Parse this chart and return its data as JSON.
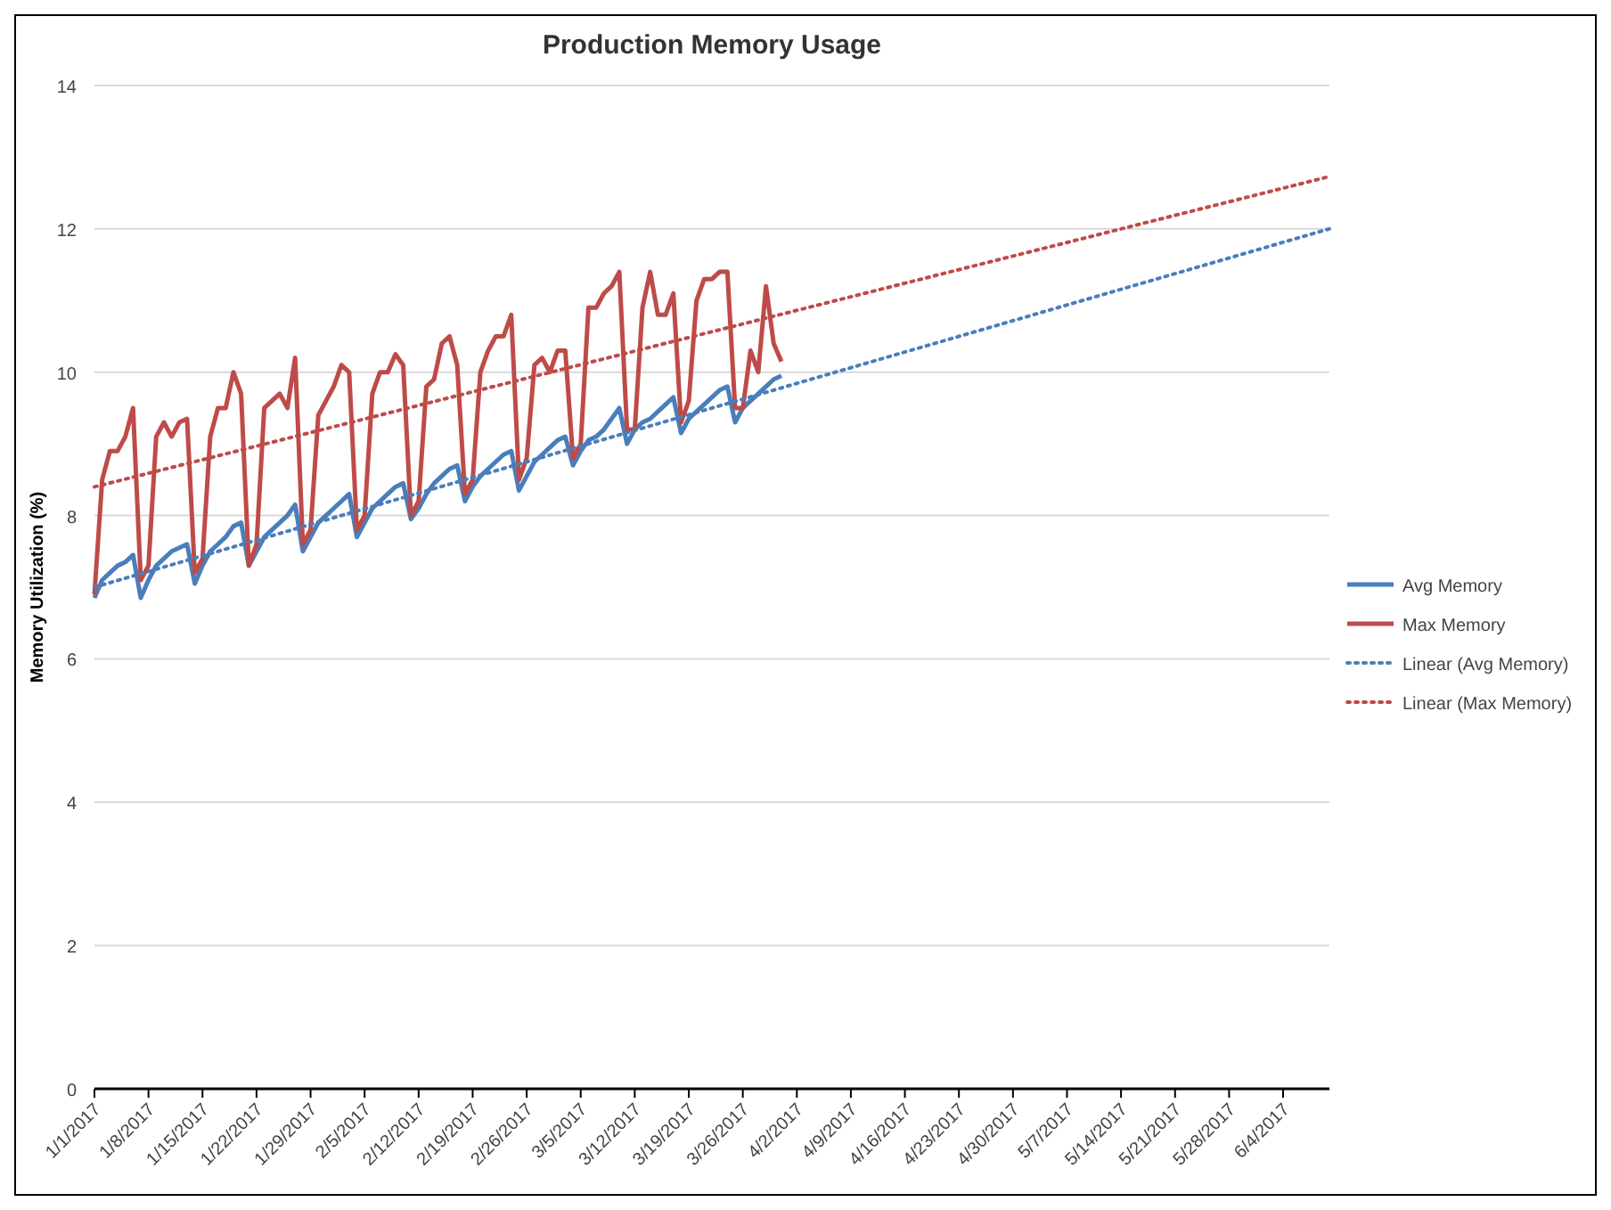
{
  "chart_data": {
    "type": "line",
    "title": "Production Memory Usage",
    "ylabel": "Memory Utilization  (%)",
    "x": [
      "2017-01-01",
      "2017-01-02",
      "2017-01-03",
      "2017-01-04",
      "2017-01-05",
      "2017-01-06",
      "2017-01-07",
      "2017-01-08",
      "2017-01-09",
      "2017-01-10",
      "2017-01-11",
      "2017-01-12",
      "2017-01-13",
      "2017-01-14",
      "2017-01-15",
      "2017-01-16",
      "2017-01-17",
      "2017-01-18",
      "2017-01-19",
      "2017-01-20",
      "2017-01-21",
      "2017-01-22",
      "2017-01-23",
      "2017-01-24",
      "2017-01-25",
      "2017-01-26",
      "2017-01-27",
      "2017-01-28",
      "2017-01-29",
      "2017-01-30",
      "2017-01-31",
      "2017-02-01",
      "2017-02-02",
      "2017-02-03",
      "2017-02-04",
      "2017-02-05",
      "2017-02-06",
      "2017-02-07",
      "2017-02-08",
      "2017-02-09",
      "2017-02-10",
      "2017-02-11",
      "2017-02-12",
      "2017-02-13",
      "2017-02-14",
      "2017-02-15",
      "2017-02-16",
      "2017-02-17",
      "2017-02-18",
      "2017-02-19",
      "2017-02-20",
      "2017-02-21",
      "2017-02-22",
      "2017-02-23",
      "2017-02-24",
      "2017-02-25",
      "2017-02-26",
      "2017-02-27",
      "2017-02-28",
      "2017-03-01",
      "2017-03-02",
      "2017-03-03",
      "2017-03-04",
      "2017-03-05",
      "2017-03-06",
      "2017-03-07",
      "2017-03-08",
      "2017-03-09",
      "2017-03-10",
      "2017-03-11",
      "2017-03-12",
      "2017-03-13",
      "2017-03-14",
      "2017-03-15",
      "2017-03-16",
      "2017-03-17",
      "2017-03-18",
      "2017-03-19",
      "2017-03-20",
      "2017-03-21",
      "2017-03-22",
      "2017-03-23",
      "2017-03-24",
      "2017-03-25",
      "2017-03-26",
      "2017-03-27",
      "2017-03-28",
      "2017-03-29",
      "2017-03-30",
      "2017-03-31"
    ],
    "series": [
      {
        "name": "Avg Memory",
        "color": "#4a7ebb",
        "values": [
          6.85,
          7.1,
          7.2,
          7.3,
          7.35,
          7.45,
          6.85,
          7.1,
          7.3,
          7.4,
          7.5,
          7.55,
          7.6,
          7.05,
          7.3,
          7.5,
          7.6,
          7.7,
          7.85,
          7.9,
          7.3,
          7.5,
          7.7,
          7.8,
          7.9,
          8.0,
          8.15,
          7.5,
          7.7,
          7.9,
          8.0,
          8.1,
          8.2,
          8.3,
          7.7,
          7.9,
          8.1,
          8.2,
          8.3,
          8.4,
          8.45,
          7.95,
          8.1,
          8.3,
          8.45,
          8.55,
          8.65,
          8.7,
          8.2,
          8.4,
          8.55,
          8.65,
          8.75,
          8.85,
          8.9,
          8.35,
          8.55,
          8.75,
          8.85,
          8.95,
          9.05,
          9.1,
          8.7,
          8.9,
          9.05,
          9.1,
          9.2,
          9.35,
          9.5,
          9.0,
          9.2,
          9.3,
          9.35,
          9.45,
          9.55,
          9.65,
          9.15,
          9.35,
          9.45,
          9.55,
          9.65,
          9.75,
          9.8,
          9.3,
          9.5,
          9.6,
          9.7,
          9.8,
          9.9,
          9.95
        ]
      },
      {
        "name": "Max Memory",
        "color": "#be4b48",
        "values": [
          6.9,
          8.5,
          8.9,
          8.9,
          9.1,
          9.5,
          7.1,
          7.3,
          9.1,
          9.3,
          9.1,
          9.3,
          9.35,
          7.2,
          7.4,
          9.1,
          9.5,
          9.5,
          10.0,
          9.7,
          7.3,
          7.6,
          9.5,
          9.6,
          9.7,
          9.5,
          10.2,
          7.6,
          7.8,
          9.4,
          9.6,
          9.8,
          10.1,
          10.0,
          7.8,
          8.0,
          9.7,
          10.0,
          10.0,
          10.25,
          10.1,
          8.0,
          8.2,
          9.8,
          9.9,
          10.4,
          10.5,
          10.1,
          8.3,
          8.5,
          10.0,
          10.3,
          10.5,
          10.5,
          10.8,
          8.5,
          8.8,
          10.1,
          10.2,
          10.0,
          10.3,
          10.3,
          8.8,
          9.0,
          10.9,
          10.9,
          11.1,
          11.2,
          11.4,
          9.2,
          9.2,
          10.9,
          11.4,
          10.8,
          10.8,
          11.1,
          9.3,
          9.6,
          11.0,
          11.3,
          11.3,
          11.4,
          11.4,
          9.5,
          9.5,
          10.3,
          10.0,
          11.2,
          10.4,
          10.15
        ]
      },
      {
        "name": "Linear (Avg Memory)",
        "color": "#4a7ebb",
        "line_style": "dotted",
        "x": [
          "2017-01-01",
          "2017-06-10"
        ],
        "values": [
          7.0,
          12.0
        ]
      },
      {
        "name": "Linear (Max Memory)",
        "color": "#be4b48",
        "line_style": "dotted",
        "x": [
          "2017-01-01",
          "2017-06-10"
        ],
        "values": [
          8.4,
          12.73
        ]
      }
    ],
    "xlim": [
      "2017-01-01",
      "2017-06-10"
    ],
    "xticks": [
      {
        "value": "2017-01-01",
        "label": "1/1/2017"
      },
      {
        "value": "2017-01-08",
        "label": "1/8/2017"
      },
      {
        "value": "2017-01-15",
        "label": "1/15/2017"
      },
      {
        "value": "2017-01-22",
        "label": "1/22/2017"
      },
      {
        "value": "2017-01-29",
        "label": "1/29/2017"
      },
      {
        "value": "2017-02-05",
        "label": "2/5/2017"
      },
      {
        "value": "2017-02-12",
        "label": "2/12/2017"
      },
      {
        "value": "2017-02-19",
        "label": "2/19/2017"
      },
      {
        "value": "2017-02-26",
        "label": "2/26/2017"
      },
      {
        "value": "2017-03-05",
        "label": "3/5/2017"
      },
      {
        "value": "2017-03-12",
        "label": "3/12/2017"
      },
      {
        "value": "2017-03-19",
        "label": "3/19/2017"
      },
      {
        "value": "2017-03-26",
        "label": "3/26/2017"
      },
      {
        "value": "2017-04-02",
        "label": "4/2/2017"
      },
      {
        "value": "2017-04-09",
        "label": "4/9/2017"
      },
      {
        "value": "2017-04-16",
        "label": "4/16/2017"
      },
      {
        "value": "2017-04-23",
        "label": "4/23/2017"
      },
      {
        "value": "2017-04-30",
        "label": "4/30/2017"
      },
      {
        "value": "2017-05-07",
        "label": "5/7/2017"
      },
      {
        "value": "2017-05-14",
        "label": "5/14/2017"
      },
      {
        "value": "2017-05-21",
        "label": "5/21/2017"
      },
      {
        "value": "2017-05-28",
        "label": "5/28/2017"
      },
      {
        "value": "2017-06-04",
        "label": "6/4/2017"
      }
    ],
    "ylim": [
      0,
      14
    ],
    "yticks": [
      0,
      2,
      4,
      6,
      8,
      10,
      12,
      14
    ],
    "grid": "y",
    "legend": "right"
  }
}
